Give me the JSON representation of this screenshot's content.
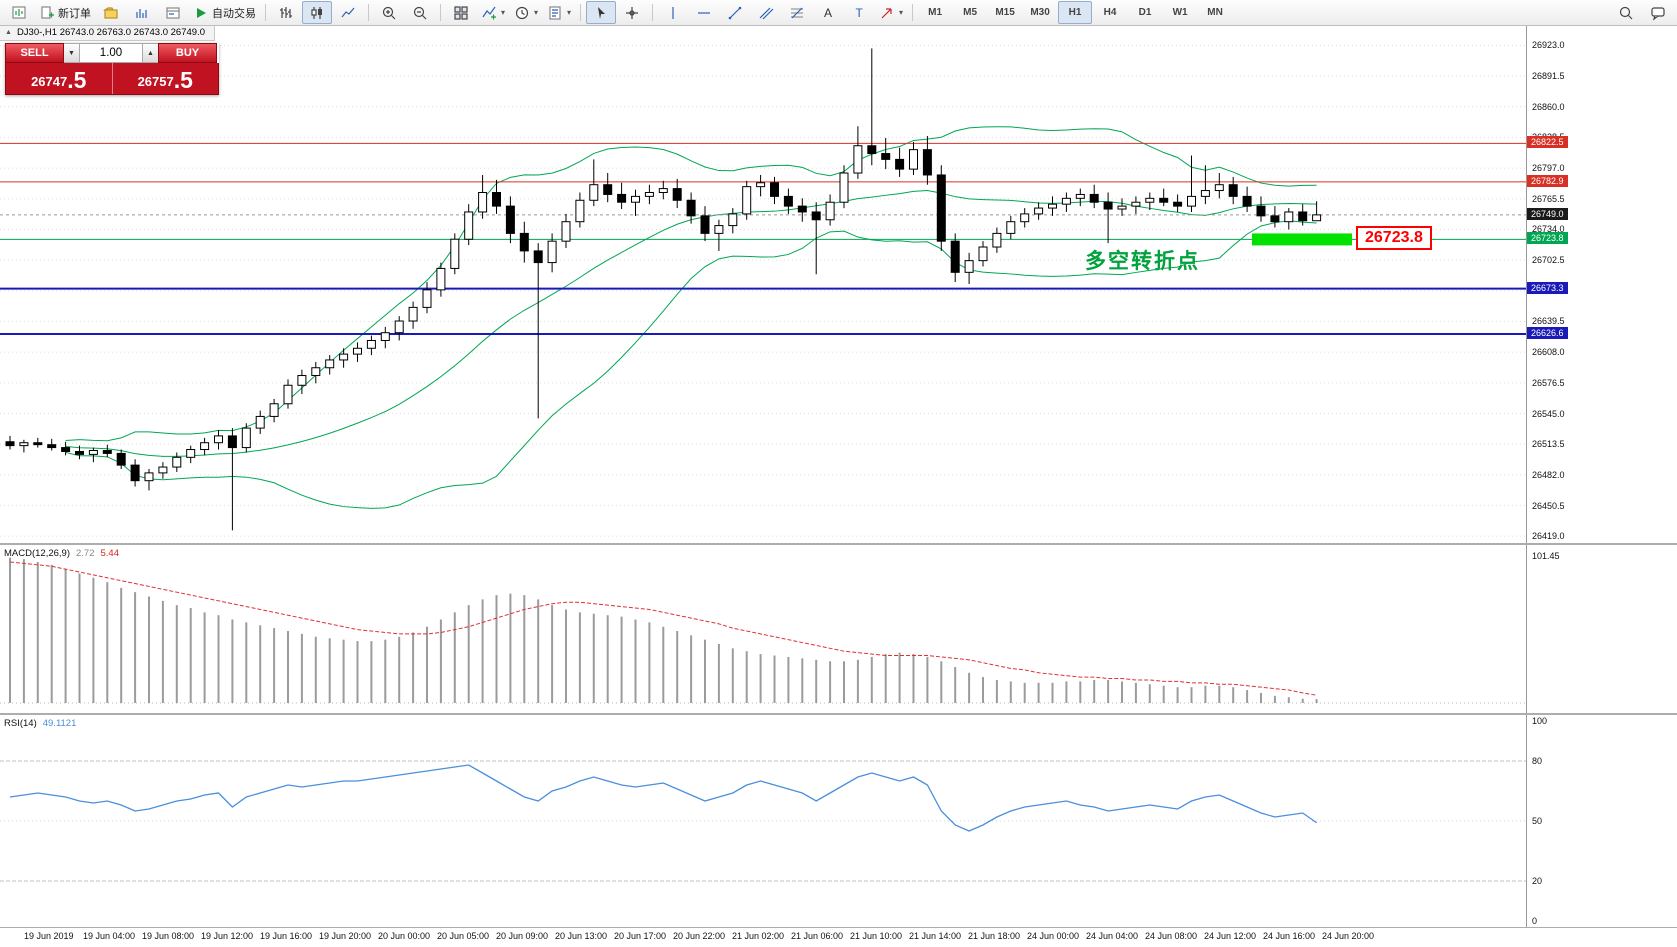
{
  "toolbar": {
    "new_order": "新订单",
    "autotrading": "自动交易",
    "timeframes": [
      "M1",
      "M5",
      "M15",
      "M30",
      "H1",
      "H4",
      "D1",
      "W1",
      "MN"
    ],
    "active_timeframe": "H1"
  },
  "chart": {
    "symbol_header": "DJ30-,H1 26743.0 26763.0 26743.0 26749.0",
    "trade_panel": {
      "sell_label": "SELL",
      "buy_label": "BUY",
      "volume": "1.00",
      "sell_price_main": "26747",
      "sell_price_frac": ".5",
      "buy_price_main": "26757",
      "buy_price_frac": ".5"
    },
    "annotation": {
      "text": "多空转折点",
      "color": "#00A23C"
    },
    "callout": {
      "text": "26723.8",
      "color": "#FF0000"
    },
    "highlight": {
      "price": 26723.8,
      "color": "#00E100"
    }
  },
  "price_axis": {
    "ticks": [
      "26923.0",
      "26891.5",
      "26860.0",
      "26828.5",
      "26797.0",
      "26765.5",
      "26734.0",
      "26702.5",
      "26671.0",
      "26639.5",
      "26608.0",
      "26576.5",
      "26545.0",
      "26513.5",
      "26482.0",
      "26450.5",
      "26419.0"
    ],
    "level_tags": [
      {
        "label": "26822.5",
        "price": 26822.5,
        "bg": "#D93025"
      },
      {
        "label": "26782.9",
        "price": 26782.9,
        "bg": "#D93025"
      },
      {
        "label": "26749.0",
        "price": 26749.0,
        "bg": "#1A1A1A"
      },
      {
        "label": "26723.8",
        "price": 26723.8,
        "bg": "#00A651"
      },
      {
        "label": "26673.3",
        "price": 26673.3,
        "bg": "#1A1AB8"
      },
      {
        "label": "26626.6",
        "price": 26626.6,
        "bg": "#1A1AB8"
      }
    ]
  },
  "time_axis": [
    "19 Jun 2019",
    "19 Jun 04:00",
    "19 Jun 08:00",
    "19 Jun 12:00",
    "19 Jun 16:00",
    "19 Jun 20:00",
    "20 Jun 00:00",
    "20 Jun 05:00",
    "20 Jun 09:00",
    "20 Jun 13:00",
    "20 Jun 17:00",
    "20 Jun 22:00",
    "21 Jun 02:00",
    "21 Jun 06:00",
    "21 Jun 10:00",
    "21 Jun 14:00",
    "21 Jun 18:00",
    "24 Jun 00:00",
    "24 Jun 04:00",
    "24 Jun 08:00",
    "24 Jun 12:00",
    "24 Jun 16:00",
    "24 Jun 20:00"
  ],
  "indicators": {
    "macd": {
      "name": "MACD(12,26,9)",
      "value_main": "2.72",
      "value_signal": "5.44",
      "scale_max": "101.45"
    },
    "rsi": {
      "name": "RSI(14)",
      "value": "49.1121",
      "scale_labels": [
        "100",
        "80",
        "50",
        "20",
        "0"
      ]
    }
  },
  "chart_data": [
    {
      "type": "candlestick",
      "symbol": "DJ30-",
      "timeframe": "H1",
      "ohlc_current": {
        "open": 26743.0,
        "high": 26763.0,
        "low": 26743.0,
        "close": 26749.0
      },
      "y_min": 26419.0,
      "y_max": 26923.0,
      "tick_step": 31.5,
      "current_price": 26749.0,
      "bollinger": {
        "period": 20,
        "deviation": 2,
        "color": "#00A651"
      },
      "h_lines": [
        {
          "price": 26822.5,
          "color": "#D93025",
          "width": 1
        },
        {
          "price": 26782.9,
          "color": "#D93025",
          "width": 1
        },
        {
          "price": 26723.8,
          "color": "#00A651",
          "width": 1
        },
        {
          "price": 26673.3,
          "color": "#1A1AB8",
          "width": 2
        },
        {
          "price": 26626.6,
          "color": "#1A1AB8",
          "width": 2
        }
      ],
      "candles": [
        [
          26516,
          26522,
          26508,
          26512
        ],
        [
          26512,
          26518,
          26505,
          26515
        ],
        [
          26515,
          26520,
          26510,
          26513
        ],
        [
          26513,
          26519,
          26507,
          26510
        ],
        [
          26510,
          26516,
          26502,
          26506
        ],
        [
          26506,
          26512,
          26498,
          26503
        ],
        [
          26503,
          26510,
          26495,
          26507
        ],
        [
          26507,
          26513,
          26500,
          26504
        ],
        [
          26504,
          26508,
          26488,
          26492
        ],
        [
          26492,
          26498,
          26470,
          26476
        ],
        [
          26476,
          26488,
          26466,
          26484
        ],
        [
          26484,
          26495,
          26478,
          26490
        ],
        [
          26490,
          26505,
          26485,
          26500
        ],
        [
          26500,
          26512,
          26494,
          26508
        ],
        [
          26508,
          26520,
          26502,
          26515
        ],
        [
          26515,
          26528,
          26508,
          26522
        ],
        [
          26522,
          26530,
          26425,
          26510
        ],
        [
          26510,
          26535,
          26505,
          26530
        ],
        [
          26530,
          26548,
          26524,
          26542
        ],
        [
          26542,
          26560,
          26536,
          26555
        ],
        [
          26555,
          26580,
          26550,
          26574
        ],
        [
          26574,
          26590,
          26565,
          26584
        ],
        [
          26584,
          26598,
          26576,
          26592
        ],
        [
          26592,
          26605,
          26585,
          26600
        ],
        [
          26600,
          26612,
          26592,
          26606
        ],
        [
          26606,
          26618,
          26598,
          26612
        ],
        [
          26612,
          26625,
          26605,
          26620
        ],
        [
          26620,
          26634,
          26612,
          26628
        ],
        [
          26628,
          26645,
          26620,
          26640
        ],
        [
          26640,
          26660,
          26632,
          26654
        ],
        [
          26654,
          26680,
          26648,
          26672
        ],
        [
          26672,
          26700,
          26665,
          26694
        ],
        [
          26694,
          26730,
          26688,
          26724
        ],
        [
          26724,
          26760,
          26718,
          26752
        ],
        [
          26752,
          26790,
          26745,
          26772
        ],
        [
          26772,
          26785,
          26750,
          26758
        ],
        [
          26758,
          26768,
          26720,
          26730
        ],
        [
          26730,
          26742,
          26700,
          26712
        ],
        [
          26712,
          26720,
          26540,
          26700
        ],
        [
          26700,
          26730,
          26690,
          26722
        ],
        [
          26722,
          26750,
          26715,
          26742
        ],
        [
          26742,
          26772,
          26736,
          26764
        ],
        [
          26764,
          26806,
          26758,
          26780
        ],
        [
          26780,
          26792,
          26762,
          26770
        ],
        [
          26770,
          26782,
          26755,
          26762
        ],
        [
          26762,
          26775,
          26748,
          26768
        ],
        [
          26768,
          26780,
          26760,
          26772
        ],
        [
          26772,
          26784,
          26765,
          26776
        ],
        [
          26776,
          26786,
          26756,
          26764
        ],
        [
          26764,
          26772,
          26740,
          26748
        ],
        [
          26748,
          26758,
          26722,
          26730
        ],
        [
          26730,
          26744,
          26712,
          26738
        ],
        [
          26738,
          26756,
          26730,
          26750
        ],
        [
          26750,
          26784,
          26744,
          26778
        ],
        [
          26778,
          26790,
          26768,
          26782
        ],
        [
          26782,
          26788,
          26760,
          26768
        ],
        [
          26768,
          26776,
          26750,
          26758
        ],
        [
          26758,
          26766,
          26742,
          26752
        ],
        [
          26752,
          26762,
          26688,
          26744
        ],
        [
          26744,
          26770,
          26738,
          26762
        ],
        [
          26762,
          26800,
          26756,
          26792
        ],
        [
          26792,
          26840,
          26786,
          26820
        ],
        [
          26820,
          26920,
          26800,
          26812
        ],
        [
          26812,
          26828,
          26796,
          26806
        ],
        [
          26806,
          26818,
          26788,
          26796
        ],
        [
          26796,
          26824,
          26790,
          26816
        ],
        [
          26816,
          26830,
          26780,
          26790
        ],
        [
          26790,
          26800,
          26712,
          26722
        ],
        [
          26722,
          26730,
          26680,
          26690
        ],
        [
          26690,
          26710,
          26678,
          26702
        ],
        [
          26702,
          26722,
          26696,
          26716
        ],
        [
          26716,
          26736,
          26710,
          26730
        ],
        [
          26730,
          26748,
          26724,
          26742
        ],
        [
          26742,
          26756,
          26736,
          26750
        ],
        [
          26750,
          26762,
          26744,
          26756
        ],
        [
          26756,
          26768,
          26748,
          26760
        ],
        [
          26760,
          26772,
          26752,
          26766
        ],
        [
          26766,
          26776,
          26758,
          26770
        ],
        [
          26770,
          26780,
          26756,
          26762
        ],
        [
          26762,
          26772,
          26720,
          26755
        ],
        [
          26755,
          26766,
          26748,
          26758
        ],
        [
          26758,
          26768,
          26750,
          26762
        ],
        [
          26762,
          26772,
          26754,
          26766
        ],
        [
          26766,
          26776,
          26758,
          26762
        ],
        [
          26762,
          26770,
          26752,
          26758
        ],
        [
          26758,
          26810,
          26752,
          26768
        ],
        [
          26768,
          26800,
          26760,
          26774
        ],
        [
          26774,
          26792,
          26766,
          26780
        ],
        [
          26780,
          26788,
          26760,
          26768
        ],
        [
          26768,
          26778,
          26752,
          26758
        ],
        [
          26758,
          26768,
          26742,
          26748
        ],
        [
          26748,
          26758,
          26736,
          26742
        ],
        [
          26742,
          26756,
          26734,
          26752
        ],
        [
          26752,
          26760,
          26738,
          26743
        ],
        [
          26743,
          26763,
          26743,
          26749
        ]
      ]
    },
    {
      "type": "bar",
      "name": "MACD(12,26,9)",
      "scale_max": 101.45,
      "current": [
        2.72,
        5.44
      ],
      "colors": {
        "histogram": "#9B9B9B",
        "signal": "#E03030"
      },
      "histogram": [
        101,
        100,
        98,
        96,
        93,
        90,
        87,
        84,
        80,
        77,
        74,
        71,
        68,
        66,
        63,
        61,
        58,
        56,
        54,
        52,
        50,
        48,
        46,
        45,
        44,
        43,
        43,
        44,
        46,
        49,
        53,
        58,
        63,
        68,
        72,
        75,
        76,
        75,
        72,
        68,
        65,
        63,
        62,
        61,
        60,
        58,
        56,
        53,
        50,
        47,
        44,
        41,
        38,
        36,
        34,
        33,
        32,
        31,
        30,
        29,
        29,
        30,
        32,
        34,
        35,
        34,
        32,
        29,
        25,
        21,
        18,
        16,
        15,
        14,
        14,
        14,
        15,
        15,
        16,
        16,
        15,
        14,
        13,
        12,
        11,
        11,
        12,
        12,
        11,
        9,
        7,
        5,
        4,
        3,
        2.72
      ],
      "signal": [
        98,
        97,
        96,
        95,
        93,
        91,
        89,
        87,
        85,
        83,
        81,
        79,
        77,
        75,
        73,
        71,
        69,
        67,
        65,
        63,
        61,
        59,
        57,
        55,
        53,
        51,
        50,
        49,
        48,
        48,
        48,
        49,
        51,
        53,
        56,
        59,
        62,
        65,
        67,
        69,
        70,
        70,
        69,
        68,
        67,
        66,
        65,
        63,
        61,
        59,
        57,
        55,
        52,
        50,
        48,
        46,
        44,
        42,
        40,
        38,
        36,
        35,
        34,
        33,
        33,
        33,
        33,
        32,
        31,
        30,
        28,
        26,
        24,
        23,
        21,
        20,
        19,
        18,
        18,
        17,
        17,
        16,
        16,
        15,
        15,
        14,
        14,
        13,
        13,
        12,
        11,
        10,
        9,
        7,
        5.44
      ]
    },
    {
      "type": "line",
      "name": "RSI(14)",
      "current": 49.1121,
      "levels": [
        80,
        50,
        20
      ],
      "range": [
        0,
        100
      ],
      "color": "#4A8FDD",
      "values": [
        62,
        63,
        64,
        63,
        62,
        60,
        59,
        60,
        58,
        55,
        56,
        58,
        60,
        61,
        63,
        64,
        57,
        62,
        64,
        66,
        68,
        67,
        68,
        69,
        70,
        70,
        71,
        72,
        73,
        74,
        75,
        76,
        77,
        78,
        74,
        70,
        66,
        62,
        60,
        65,
        67,
        70,
        72,
        70,
        68,
        67,
        68,
        69,
        66,
        63,
        60,
        62,
        64,
        68,
        70,
        68,
        66,
        64,
        60,
        64,
        68,
        72,
        74,
        72,
        70,
        72,
        68,
        55,
        48,
        45,
        48,
        52,
        55,
        57,
        58,
        59,
        60,
        58,
        57,
        55,
        56,
        57,
        58,
        57,
        56,
        60,
        62,
        63,
        60,
        57,
        54,
        52,
        53,
        54,
        49.11
      ]
    }
  ]
}
